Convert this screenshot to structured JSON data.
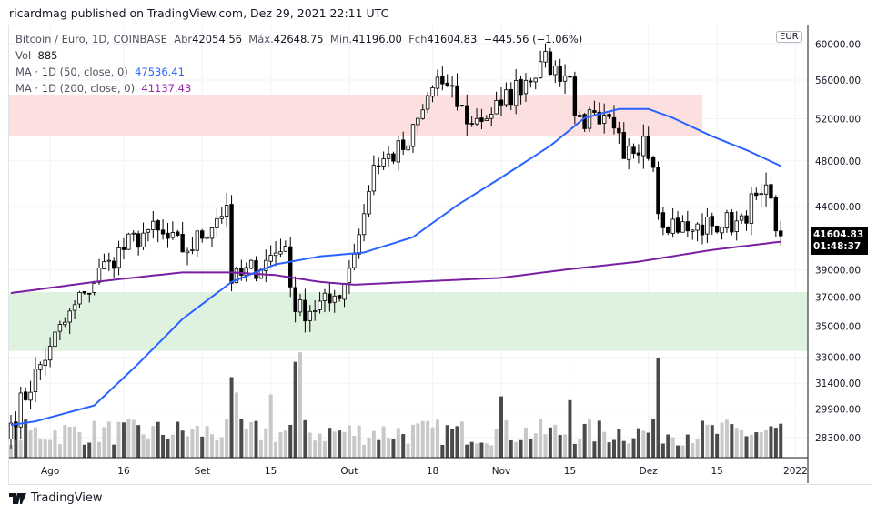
{
  "header": {
    "published": "ricardmag published on TradingView.com, Dez 29, 2021 22:11 UTC"
  },
  "legend": {
    "symbol": "Bitcoin / Euro, 1D, COINBASE",
    "open_label": "Abr",
    "open": "42054.56",
    "high_label": "Máx.",
    "high": "42648.75",
    "low_label": "Mín.",
    "low": "41196.00",
    "close_label": "Fch",
    "close": "41604.83",
    "change": "−445.56 (−1.06%)",
    "vol_label": "Vol",
    "vol": "885",
    "ma50_label": "MA · 1D (50, close, 0)",
    "ma50": "47536.41",
    "ma200_label": "MA · 1D (200, close, 0)",
    "ma200": "41137.43"
  },
  "currency": "EUR",
  "last_price": {
    "price": "41604.83",
    "countdown": "01:48:37"
  },
  "footer": {
    "brand": "TradingView"
  },
  "colors": {
    "ma50": "#2962ff",
    "ma200": "#7b1fa2",
    "resistance_zone": "#fcdcdc",
    "support_zone": "#dcf0dc",
    "up": "#ffffff",
    "down": "#000000"
  },
  "chart_data": {
    "type": "candlestick",
    "scale": "log",
    "days": 158,
    "x_ticks": [
      {
        "day": 8,
        "label": "Ago"
      },
      {
        "day": 23,
        "label": "16"
      },
      {
        "day": 39,
        "label": "Set"
      },
      {
        "day": 53,
        "label": "15"
      },
      {
        "day": 69,
        "label": "Out"
      },
      {
        "day": 86,
        "label": "18"
      },
      {
        "day": 100,
        "label": "Nov"
      },
      {
        "day": 114,
        "label": "15"
      },
      {
        "day": 130,
        "label": "Dez"
      },
      {
        "day": 144,
        "label": "15"
      },
      {
        "day": 160,
        "label": "2022"
      }
    ],
    "y_ticks": [
      "60000.00",
      "56000.00",
      "52000.00",
      "48000.00",
      "44000.00",
      "39000.00",
      "37000.00",
      "35000.00",
      "33000.00",
      "31400.00",
      "29900.00",
      "28300.00"
    ],
    "close_anchors": [
      [
        0,
        29100
      ],
      [
        8,
        33700
      ],
      [
        15,
        37300
      ],
      [
        20,
        39700
      ],
      [
        28,
        42100
      ],
      [
        36,
        40400
      ],
      [
        44,
        44100
      ],
      [
        45,
        38000
      ],
      [
        52,
        39700
      ],
      [
        56,
        40800
      ],
      [
        58,
        36000
      ],
      [
        65,
        36600
      ],
      [
        68,
        38000
      ],
      [
        72,
        43400
      ],
      [
        74,
        47600
      ],
      [
        81,
        49400
      ],
      [
        84,
        52900
      ],
      [
        87,
        56300
      ],
      [
        94,
        51500
      ],
      [
        100,
        53400
      ],
      [
        108,
        58000
      ],
      [
        114,
        56300
      ],
      [
        115,
        52300
      ],
      [
        120,
        51500
      ],
      [
        123,
        51100
      ],
      [
        125,
        48200
      ],
      [
        129,
        50300
      ],
      [
        131,
        47400
      ],
      [
        132,
        43400
      ],
      [
        138,
        42000
      ],
      [
        143,
        42400
      ],
      [
        148,
        42800
      ],
      [
        153,
        45100
      ],
      [
        155,
        44700
      ],
      [
        156,
        42000
      ],
      [
        157,
        41604.83
      ]
    ],
    "ma50_anchors": [
      [
        0,
        29000
      ],
      [
        5,
        29200
      ],
      [
        17,
        30100
      ],
      [
        26,
        32600
      ],
      [
        35,
        35500
      ],
      [
        45,
        38100
      ],
      [
        54,
        39400
      ],
      [
        63,
        40000
      ],
      [
        72,
        40300
      ],
      [
        82,
        41500
      ],
      [
        91,
        44100
      ],
      [
        100,
        46500
      ],
      [
        110,
        49400
      ],
      [
        117,
        52100
      ],
      [
        124,
        53000
      ],
      [
        130,
        53000
      ],
      [
        135,
        52100
      ],
      [
        143,
        50300
      ],
      [
        150,
        49000
      ],
      [
        157,
        47536.41
      ]
    ],
    "ma200_anchors": [
      [
        0,
        37300
      ],
      [
        17,
        38100
      ],
      [
        35,
        38800
      ],
      [
        45,
        38800
      ],
      [
        54,
        38600
      ],
      [
        63,
        38100
      ],
      [
        70,
        37900
      ],
      [
        82,
        38100
      ],
      [
        100,
        38400
      ],
      [
        113,
        39000
      ],
      [
        128,
        39600
      ],
      [
        143,
        40500
      ],
      [
        157,
        41137.43
      ]
    ],
    "zones": [
      {
        "name": "resistance",
        "from": 50300,
        "to": 54460,
        "day_start": 0,
        "day_end": 141
      },
      {
        "name": "support",
        "from": 33400,
        "to": 37370,
        "day_start": 0,
        "day_end": 164
      }
    ],
    "volume_spikes": [
      [
        45,
        2100
      ],
      [
        46,
        1700
      ],
      [
        53,
        1650
      ],
      [
        58,
        2500
      ],
      [
        59,
        2750
      ],
      [
        100,
        1600
      ],
      [
        114,
        1500
      ],
      [
        132,
        2600
      ],
      [
        157,
        885
      ]
    ],
    "volume_base": 700
  }
}
